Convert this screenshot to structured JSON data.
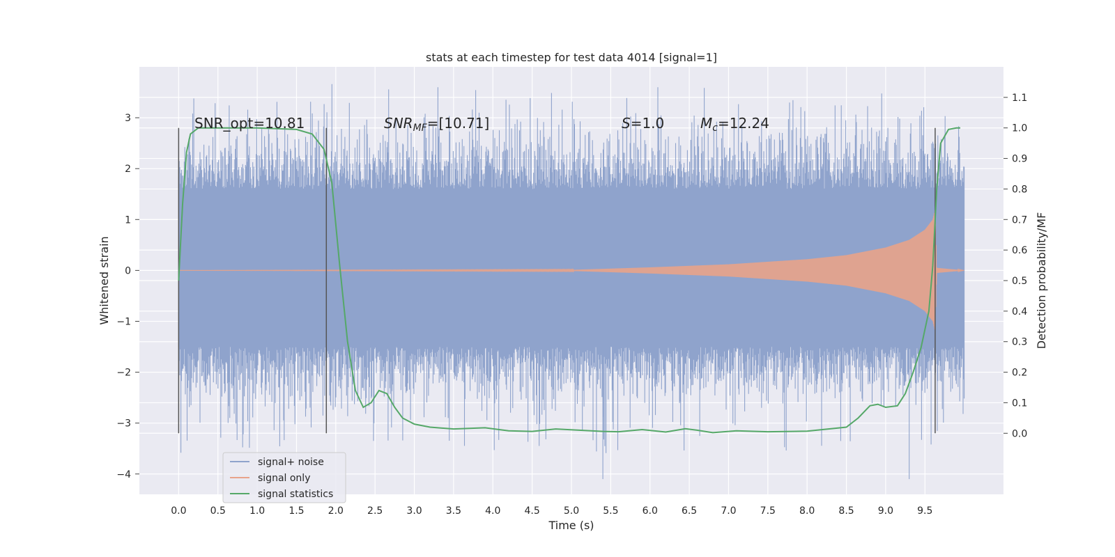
{
  "chart_data": {
    "type": "line",
    "title": "stats at each timestep for test data 4014 [signal=1]",
    "xlabel": "Time (s)",
    "ylabel": "Whitened strain",
    "ylabel_right": "Detection probability/MF",
    "xlim": [
      -0.5,
      10.5
    ],
    "ylim": [
      -4.4,
      4.0
    ],
    "ylim_right": [
      -0.2,
      1.2
    ],
    "x_ticks": [
      "0.0",
      "0.5",
      "1.0",
      "1.5",
      "2.0",
      "2.5",
      "3.0",
      "3.5",
      "4.0",
      "4.5",
      "5.0",
      "5.5",
      "6.0",
      "6.5",
      "7.0",
      "7.5",
      "8.0",
      "8.5",
      "9.0",
      "9.5"
    ],
    "y_ticks": [
      "−4",
      "−3",
      "−2",
      "−1",
      "0",
      "1",
      "2",
      "3"
    ],
    "y_ticks_right": [
      "0.0",
      "0.1",
      "0.2",
      "0.3",
      "0.4",
      "0.5",
      "0.6",
      "0.7",
      "0.8",
      "0.9",
      "1.0",
      "1.1"
    ],
    "grid": true,
    "legend_position": "lower-left",
    "series": [
      {
        "name": "signal+ noise",
        "color": "#8fa3cc",
        "duration_s": [
          0.0,
          10.0
        ],
        "typical_amplitude": [
          -1.5,
          1.6
        ],
        "extreme_values": [
          3.6,
          -4.1
        ]
      },
      {
        "name": "signal only",
        "color": "#e8a38a",
        "description_points": {
          "x": [
            0.0,
            5.0,
            6.0,
            7.0,
            8.0,
            8.5,
            9.0,
            9.3,
            9.5,
            9.6,
            9.63,
            9.65,
            10.0
          ],
          "envelope": [
            0.0,
            0.01,
            0.06,
            0.12,
            0.22,
            0.3,
            0.45,
            0.6,
            0.8,
            1.0,
            1.2,
            0.05,
            0.0
          ]
        }
      },
      {
        "name": "signal statistics",
        "color": "#55a868",
        "axis": "right",
        "x": [
          0.0,
          0.05,
          0.1,
          0.15,
          0.25,
          0.5,
          1.0,
          1.5,
          1.7,
          1.85,
          1.95,
          2.05,
          2.15,
          2.25,
          2.35,
          2.45,
          2.55,
          2.65,
          2.75,
          2.85,
          3.0,
          3.2,
          3.5,
          3.9,
          4.2,
          4.5,
          4.8,
          5.1,
          5.4,
          5.6,
          5.9,
          6.2,
          6.45,
          6.6,
          6.8,
          7.1,
          7.5,
          8.0,
          8.5,
          8.65,
          8.8,
          8.9,
          9.0,
          9.15,
          9.25,
          9.35,
          9.45,
          9.55,
          9.6,
          9.65,
          9.7,
          9.8,
          9.9,
          9.95
        ],
        "y": [
          0.5,
          0.75,
          0.92,
          0.98,
          1.0,
          1.0,
          1.0,
          0.995,
          0.98,
          0.93,
          0.82,
          0.55,
          0.3,
          0.14,
          0.085,
          0.1,
          0.14,
          0.13,
          0.085,
          0.05,
          0.03,
          0.02,
          0.014,
          0.018,
          0.008,
          0.006,
          0.014,
          0.01,
          0.006,
          0.005,
          0.012,
          0.004,
          0.015,
          0.01,
          0.002,
          0.008,
          0.005,
          0.007,
          0.02,
          0.05,
          0.09,
          0.095,
          0.085,
          0.09,
          0.13,
          0.2,
          0.28,
          0.4,
          0.55,
          0.8,
          0.95,
          0.995,
          1.0,
          1.0
        ]
      }
    ],
    "vertical_lines_x": [
      0.0,
      1.88,
      9.63
    ],
    "annotations": [
      {
        "x": 0.2,
        "y": 1.0,
        "label": "SNR_opt=10.81"
      },
      {
        "x": 2.6,
        "y": 1.0,
        "label": "SNR_MF=[10.71]"
      },
      {
        "x": 5.6,
        "y": 1.0,
        "label": "S=1.0"
      },
      {
        "x": 6.6,
        "y": 1.0,
        "label": "M_c=12.24"
      }
    ],
    "annotation_parts": {
      "snr_opt": "SNR_opt=10.81",
      "snr_mf_main": "SNR",
      "snr_mf_sub": "MF",
      "snr_mf_rest": "=[10.71]",
      "s_main": "S",
      "s_rest": "=1.0",
      "mc_main": "M",
      "mc_sub": "c",
      "mc_rest": "=12.24"
    }
  }
}
